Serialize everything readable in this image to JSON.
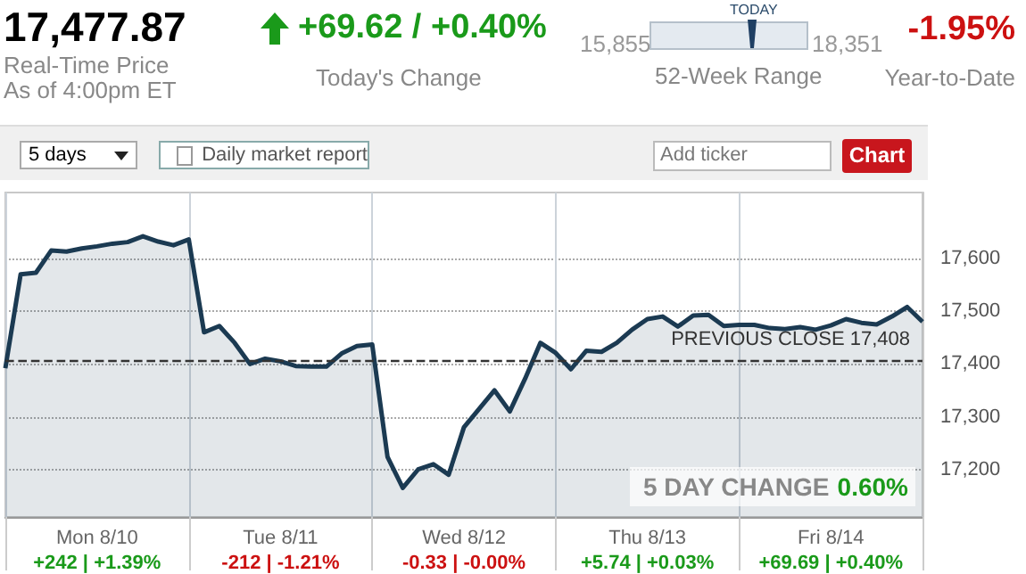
{
  "chart_data": {
    "type": "area",
    "title": "17,477.87",
    "annotations": [
      "Real-Time Price",
      "As of 4:00pm ET",
      "+69.62 / +0.40%",
      "Today's Change",
      "TODAY",
      "15,855",
      "18,351",
      "52-Week Range",
      "-1.95%",
      "Year-to-Date",
      "5 days",
      "Daily market report",
      "Add ticker",
      "Chart",
      "5 DAY CHANGE",
      "0.60%"
    ],
    "categories": [
      null,
      null,
      null,
      null,
      null,
      null,
      "Mon 8/10\n+242 | +1.39%",
      null,
      null,
      null,
      null,
      null,
      null,
      null,
      null,
      null,
      null,
      null,
      "Tue 8/11\n-212 | -1.21%",
      null,
      null,
      null,
      null,
      null,
      null,
      null,
      null,
      null,
      null,
      null,
      "Wed 8/12\n-0.33 | -0.00%",
      null,
      null,
      null,
      null,
      null,
      null,
      null,
      null,
      null,
      null,
      null,
      "Thu 8/13\n+5.74 | +0.03%",
      null,
      null,
      null,
      null,
      null,
      null,
      null,
      null,
      null,
      null,
      null,
      "Fri 8/14\n+69.69 | +0.40%",
      null,
      null,
      null,
      null,
      null,
      null
    ],
    "series": [
      {
        "color": "#1b3a52",
        "values": [
          17392,
          17570,
          17573,
          17615,
          17613,
          17619,
          17623,
          17628,
          17631,
          17642,
          17632,
          17625,
          17636,
          17460,
          17472,
          17440,
          17400,
          17410,
          17405,
          17396,
          17395,
          17395,
          17420,
          17434,
          17437,
          17224,
          17165,
          17200,
          17210,
          17190,
          17280,
          17315,
          17350,
          17310,
          17372,
          17440,
          17421,
          17390,
          17425,
          17423,
          17440,
          17465,
          17485,
          17490,
          17471,
          17492,
          17493,
          17472,
          17474,
          17474,
          17468,
          17466,
          17470,
          17465,
          17473,
          17485,
          17478,
          17475,
          17490,
          17508,
          17480
        ]
      }
    ],
    "ylim": [
      17110,
      17725
    ],
    "yticks": [
      {
        "value": 17200,
        "label": "17,200"
      },
      {
        "value": 17300,
        "label": "17,300"
      },
      {
        "value": 17400,
        "label": "17,400"
      },
      {
        "value": 17500,
        "label": "17,500"
      },
      {
        "value": 17600,
        "label": "17,600"
      }
    ],
    "ref_lines": [
      {
        "axis": "y",
        "value": 17408,
        "label": "PREVIOUS CLOSE 17,408",
        "line_style": "dashed",
        "color": "#333333"
      }
    ],
    "grid": true,
    "marker": "none",
    "line_style": "solid"
  }
}
